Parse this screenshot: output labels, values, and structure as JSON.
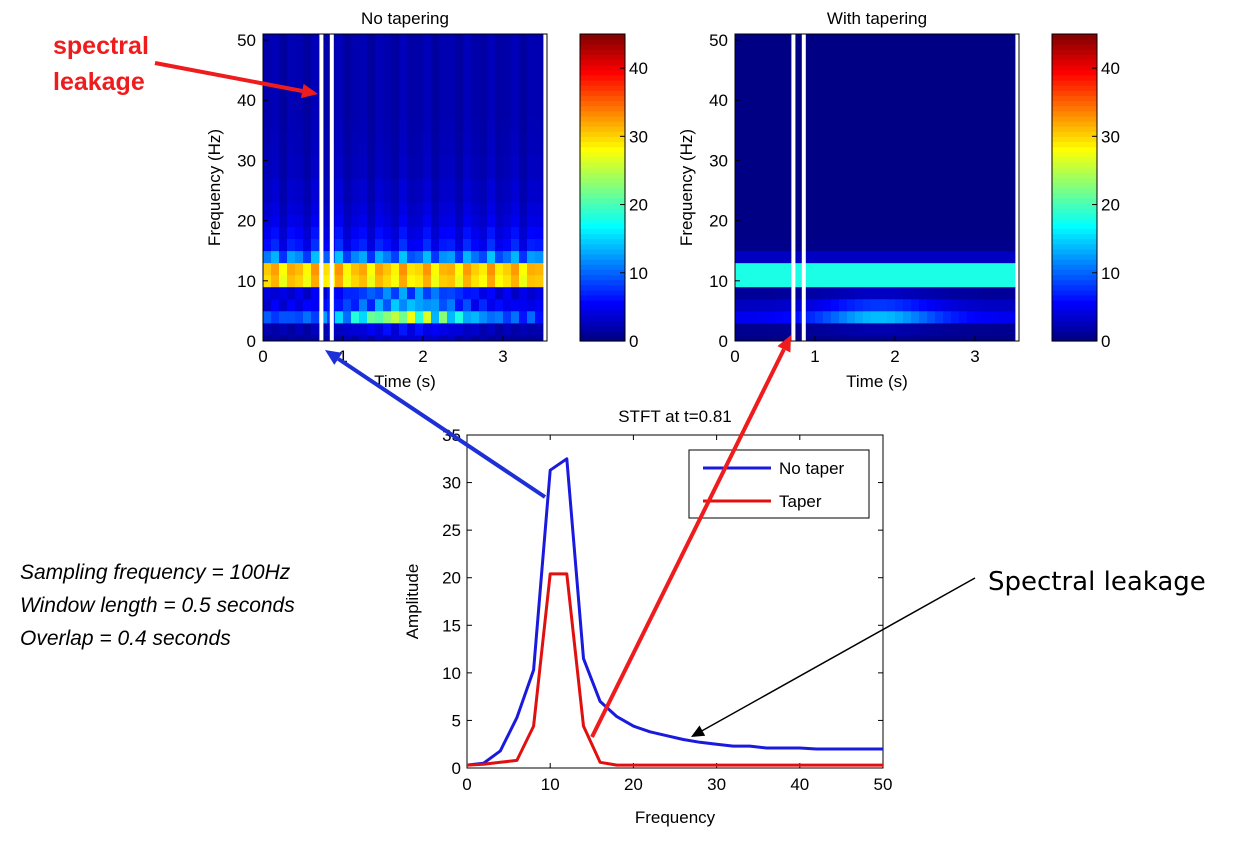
{
  "annotations": {
    "red_label": [
      "spectral",
      "leakage"
    ],
    "black_label": "Spectral leakage",
    "params": [
      "Sampling frequency = 100Hz",
      "Window length = 0.5 seconds",
      "Overlap = 0.4 seconds"
    ],
    "colors": {
      "red": "#ee1c1c",
      "blue": "#1d2fd6",
      "black": "#000000"
    }
  },
  "chart_data": [
    {
      "type": "heatmap",
      "title": "No tapering",
      "xlabel": "Time (s)",
      "ylabel": "Frequency (Hz)",
      "xlim": [
        0,
        3.55
      ],
      "ylim": [
        0,
        51
      ],
      "xticks": [
        0,
        1,
        2,
        3
      ],
      "yticks": [
        0,
        10,
        20,
        30,
        40,
        50
      ],
      "colorbar": {
        "ticks": [
          0,
          10,
          20,
          30,
          40
        ],
        "range": [
          0,
          45
        ],
        "colormap": "jet"
      },
      "time_step": 0.1,
      "freq_bins": [
        0,
        2,
        4,
        6,
        8,
        10,
        12,
        14,
        16,
        18,
        20,
        22,
        24,
        26,
        28,
        30,
        32,
        34,
        36,
        38,
        40,
        42,
        44,
        46,
        48,
        50
      ],
      "band_profile_at_peak": [
        4,
        6,
        26,
        14,
        12,
        32,
        33,
        11,
        6,
        5,
        4,
        3.5,
        3,
        3,
        2.5,
        2.5,
        2.3,
        2.2,
        2.1,
        2,
        2,
        2,
        2,
        2,
        2,
        2
      ],
      "highlighted_time": 0.81
    },
    {
      "type": "heatmap",
      "title": "With tapering",
      "xlabel": "Time (s)",
      "ylabel": "Frequency (Hz)",
      "xlim": [
        0,
        3.55
      ],
      "ylim": [
        0,
        51
      ],
      "xticks": [
        0,
        1,
        2,
        3
      ],
      "yticks": [
        0,
        10,
        20,
        30,
        40,
        50
      ],
      "colorbar": {
        "ticks": [
          0,
          10,
          20,
          30,
          40
        ],
        "range": [
          0,
          45
        ],
        "colormap": "jet"
      },
      "time_step": 0.1,
      "freq_bins": [
        0,
        2,
        4,
        6,
        8,
        10,
        12,
        14,
        16,
        18,
        20,
        22,
        24,
        26,
        28,
        30,
        32,
        34,
        36,
        38,
        40,
        42,
        44,
        46,
        48,
        50
      ],
      "band_profile_at_peak": [
        1,
        2,
        14,
        8,
        3,
        18,
        18,
        3,
        0.5,
        0.3,
        0.2,
        0.2,
        0.2,
        0.2,
        0.2,
        0.2,
        0.2,
        0.2,
        0.2,
        0.2,
        0.2,
        0.2,
        0.2,
        0.2,
        0.2,
        0.2
      ],
      "highlighted_time": 0.81
    },
    {
      "type": "line",
      "title": "STFT at t=0.81",
      "xlabel": "Frequency",
      "ylabel": "Amplitude",
      "xlim": [
        0,
        50
      ],
      "ylim": [
        0,
        35
      ],
      "xticks": [
        0,
        10,
        20,
        30,
        40,
        50
      ],
      "yticks": [
        0,
        5,
        10,
        15,
        20,
        25,
        30,
        35
      ],
      "legend": "top-right",
      "x": [
        0,
        2,
        4,
        6,
        8,
        10,
        12,
        14,
        16,
        18,
        20,
        22,
        24,
        26,
        28,
        30,
        32,
        34,
        36,
        38,
        40,
        42,
        44,
        46,
        48,
        50
      ],
      "series": [
        {
          "name": "No taper",
          "color": "#1a1adf",
          "values": [
            0.3,
            0.5,
            1.8,
            5.3,
            10.3,
            31.3,
            32.5,
            11.5,
            7,
            5.4,
            4.4,
            3.8,
            3.4,
            3.0,
            2.7,
            2.5,
            2.3,
            2.3,
            2.1,
            2.1,
            2.1,
            2.0,
            2.0,
            2.0,
            2.0,
            2.0
          ]
        },
        {
          "name": "Taper",
          "color": "#e01010",
          "values": [
            0.3,
            0.4,
            0.6,
            0.8,
            4.4,
            20.4,
            20.4,
            4.4,
            0.6,
            0.3,
            0.3,
            0.3,
            0.3,
            0.3,
            0.3,
            0.3,
            0.3,
            0.3,
            0.3,
            0.3,
            0.3,
            0.3,
            0.3,
            0.3,
            0.3,
            0.3
          ]
        }
      ]
    }
  ]
}
